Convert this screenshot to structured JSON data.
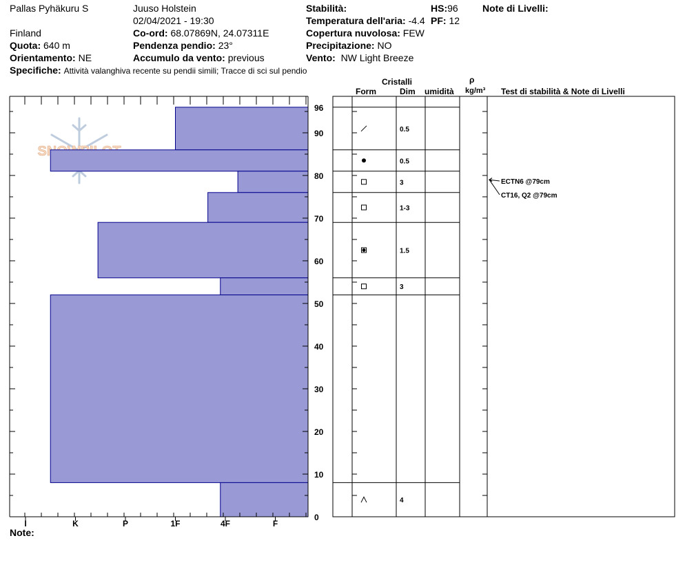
{
  "header": {
    "location": "Pallas Pyhäkuru S",
    "country": "Finland",
    "observer": "Juuso Holstein",
    "datetime": "02/04/2021 - 19:30",
    "elevation_label": "Quota:",
    "elevation": "640 m",
    "aspect_label": "Orientamento:",
    "aspect": "NE",
    "coord_label": "Co-ord:",
    "coord": "68.07869N, 24.07311E",
    "slope_label": "Pendenza pendio:",
    "slope": "23°",
    "wind_loading_label": "Accumulo da vento:",
    "wind_loading": "previous",
    "specifics_label": "Specifiche:",
    "specifics": "Attività valanghiva recente su pendii simili;  Tracce di sci sul pendio",
    "stability_label": "Stabilità:",
    "air_temp_label": "Temperatura dell'aria:",
    "air_temp": "-4.4",
    "cloud_label": "Copertura nuvolosa:",
    "cloud": "FEW",
    "precip_label": "Precipitazione:",
    "precip": "NO",
    "wind_label": "Vento:",
    "wind": "NW Light Breeze",
    "hs_label": "HS:",
    "hs": "96",
    "pf_label": "PF:",
    "pf": "12",
    "layer_notes_label": "Note di Livelli:",
    "notes_label": "Note:"
  },
  "table_headers": {
    "crystals": "Cristalli",
    "form": "Form",
    "size": "Dim",
    "moisture": "umidità",
    "rho": "ρ",
    "density_unit": "kg/m³",
    "stability_tests": "Test di stabilità & Note di Livelli"
  },
  "logo_text": "SNOWPILOT",
  "chart_data": {
    "type": "bar",
    "y_range": [
      0,
      96
    ],
    "y_ticks": [
      0,
      10,
      20,
      30,
      40,
      50,
      60,
      70,
      80,
      90,
      96
    ],
    "hardness_scale": [
      "I",
      "K",
      "P",
      "1F",
      "4F",
      "F"
    ],
    "hardness_ticks": [
      "I",
      "K",
      "P",
      "1F",
      "4F",
      "F"
    ],
    "layers": [
      {
        "top": 96,
        "bottom": 86,
        "hardness_index": 3,
        "form": "decomposing",
        "size": "0.5"
      },
      {
        "top": 86,
        "bottom": 81,
        "hardness_index": 0.5,
        "form": "rounded",
        "size": "0.5"
      },
      {
        "top": 81,
        "bottom": 76,
        "hardness_index": 4.25,
        "form": "faceted",
        "size": "3"
      },
      {
        "top": 76,
        "bottom": 69,
        "hardness_index": 3.65,
        "form": "faceted",
        "size": "1-3"
      },
      {
        "top": 69,
        "bottom": 56,
        "hardness_index": 1.45,
        "form": "rounding-faceted",
        "size": "1.5"
      },
      {
        "top": 56,
        "bottom": 52,
        "hardness_index": 3.9,
        "form": "faceted",
        "size": "3"
      },
      {
        "top": 52,
        "bottom": 8,
        "hardness_index": 0.5,
        "form": "",
        "size": ""
      },
      {
        "top": 8,
        "bottom": 0,
        "hardness_index": 3.9,
        "form": "depth-hoar",
        "size": "4"
      }
    ],
    "tests": [
      {
        "label": "ECTN6 @79cm",
        "depth": 79
      },
      {
        "label": "CT16, Q2 @79cm",
        "depth": 79
      }
    ],
    "colors": {
      "bar_fill": "#9999d6",
      "bar_stroke": "#00008b"
    }
  }
}
